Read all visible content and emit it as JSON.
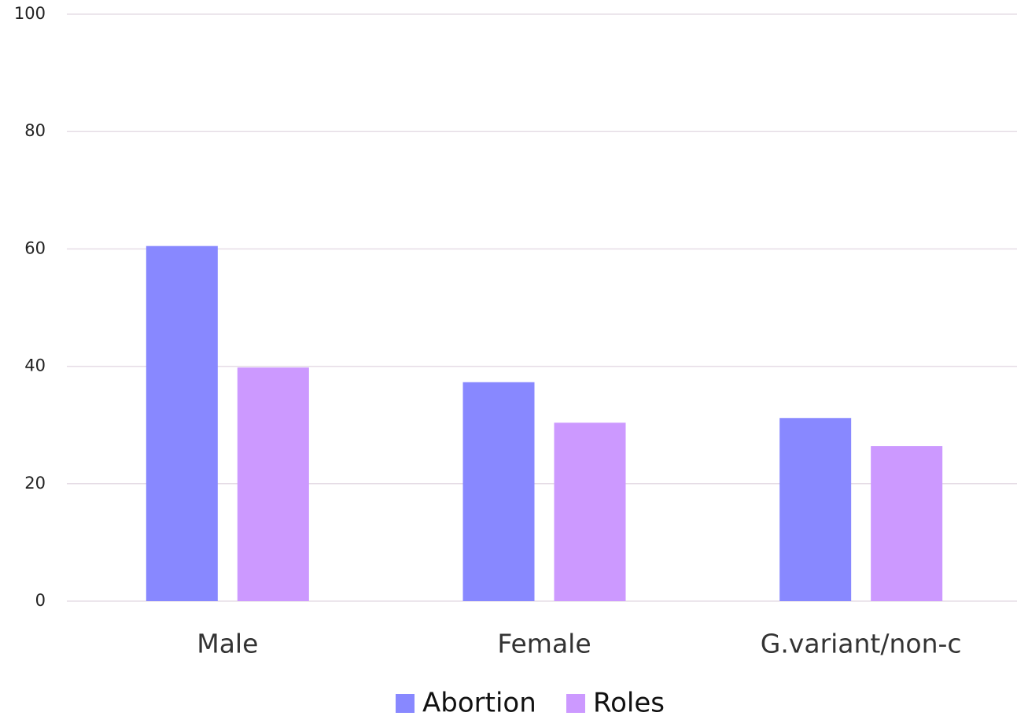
{
  "chart_data": {
    "type": "bar",
    "categories": [
      "Male",
      "Female",
      "G.variant/non-c"
    ],
    "series": [
      {
        "name": "Abortion",
        "color": "#8888ff",
        "values": [
          60.5,
          37.3,
          31.2
        ]
      },
      {
        "name": "Roles",
        "color": "#cc99ff",
        "values": [
          39.8,
          30.4,
          26.4
        ]
      }
    ],
    "ylim": [
      0,
      100
    ],
    "yticks": [
      0,
      20,
      40,
      60,
      80,
      100
    ],
    "grid": true,
    "legend": "bottom"
  }
}
